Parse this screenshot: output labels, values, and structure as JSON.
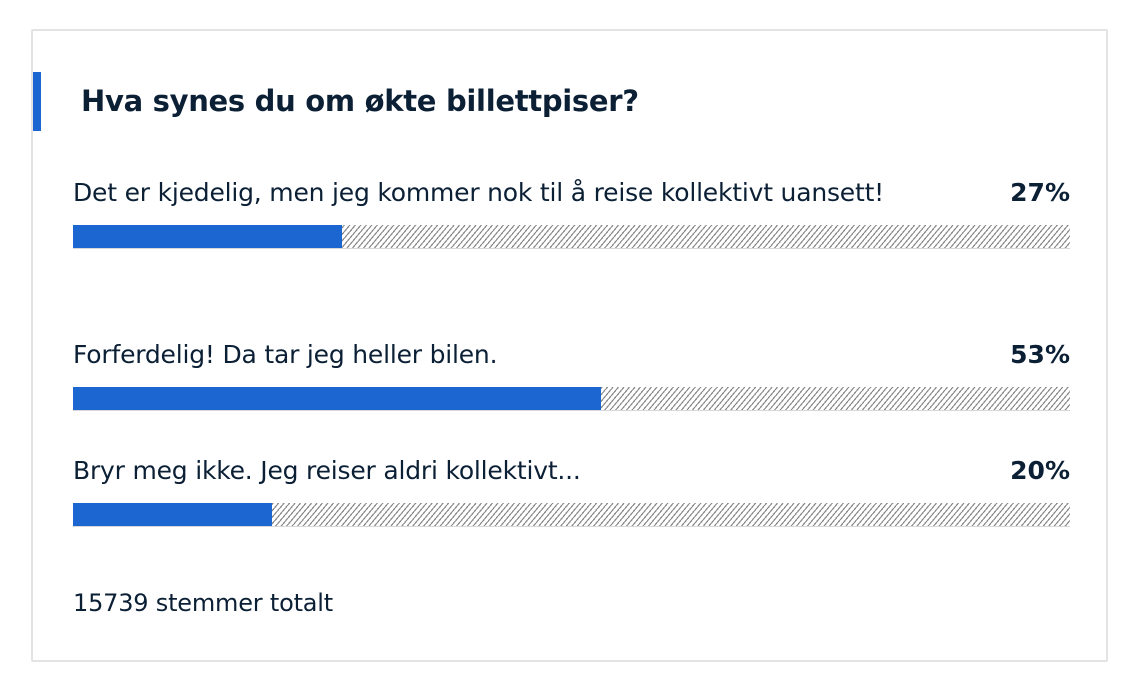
{
  "poll": {
    "title": "Hva synes du om økte billettpiser?",
    "accent_color": "#1b66d1",
    "options": [
      {
        "label": "Det er kjedelig, men jeg kommer nok til å reise kollektivt uansett!",
        "percent_text": "27%",
        "percent": 27
      },
      {
        "label": "Forferdelig! Da tar jeg heller bilen.",
        "percent_text": "53%",
        "percent": 53
      },
      {
        "label": "Bryr meg ikke. Jeg reiser aldri kollektivt...",
        "percent_text": "20%",
        "percent": 20
      }
    ],
    "total_votes_text": "15739 stemmer totalt"
  }
}
